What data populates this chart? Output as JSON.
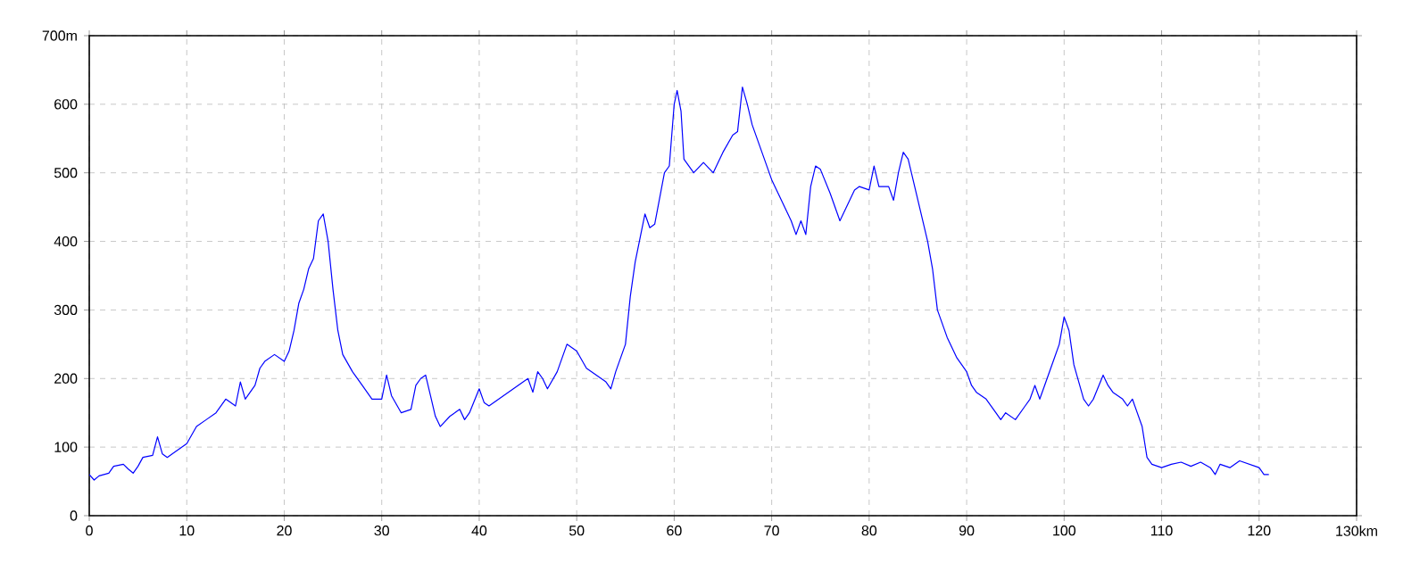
{
  "chart_data": {
    "type": "line",
    "x": [
      0,
      0.5,
      1,
      2,
      2.5,
      3.5,
      4,
      4.5,
      5,
      5.5,
      6.5,
      7,
      7.5,
      8,
      9,
      10,
      11,
      12,
      13,
      14,
      15,
      15.5,
      16,
      17,
      17.5,
      18,
      19,
      20,
      20.5,
      21,
      21.5,
      22,
      22.5,
      23,
      23.5,
      24,
      24.5,
      25,
      25.5,
      26,
      27,
      28,
      28.5,
      29,
      30,
      30.5,
      31,
      32,
      33,
      33.5,
      34,
      34.5,
      35,
      35.5,
      36,
      37,
      38,
      38.5,
      39,
      40,
      40.5,
      41,
      42,
      43,
      44,
      45,
      45.5,
      46,
      46.5,
      47,
      48,
      49,
      50,
      51,
      52,
      53,
      53.5,
      54,
      55,
      55.5,
      56,
      57,
      57.5,
      58,
      59,
      59.5,
      60,
      60.3,
      60.7,
      61,
      62,
      63,
      64,
      65,
      66,
      66.5,
      67,
      67.5,
      68,
      69,
      70,
      71,
      72,
      72.5,
      73,
      73.5,
      74,
      74.5,
      75,
      76,
      77,
      78,
      78.5,
      79,
      80,
      80.5,
      81,
      82,
      82.5,
      83,
      83.5,
      84,
      85,
      86,
      86.5,
      87,
      88,
      89,
      89.5,
      90,
      90.5,
      91,
      92,
      93,
      93.5,
      94,
      95,
      96,
      96.5,
      97,
      97.5,
      98,
      99,
      99.5,
      100,
      100.5,
      101,
      102,
      102.5,
      103,
      104,
      104.5,
      105,
      106,
      106.5,
      107,
      108,
      108.5,
      109,
      110,
      111,
      112,
      113,
      114,
      115,
      115.5,
      116,
      117,
      118,
      119,
      120,
      120.5,
      121
    ],
    "series": [
      {
        "color": "#0000ff",
        "values": [
          60,
          52,
          58,
          62,
          72,
          75,
          68,
          62,
          72,
          85,
          88,
          115,
          90,
          85,
          95,
          105,
          130,
          140,
          150,
          170,
          160,
          195,
          170,
          190,
          215,
          225,
          235,
          225,
          240,
          270,
          310,
          330,
          360,
          375,
          430,
          440,
          400,
          330,
          270,
          235,
          210,
          190,
          180,
          170,
          170,
          205,
          175,
          150,
          155,
          190,
          200,
          205,
          175,
          145,
          130,
          145,
          155,
          140,
          150,
          185,
          165,
          160,
          170,
          180,
          190,
          200,
          180,
          210,
          200,
          185,
          210,
          250,
          240,
          215,
          205,
          195,
          185,
          210,
          250,
          320,
          370,
          440,
          420,
          425,
          500,
          510,
          600,
          620,
          590,
          520,
          500,
          515,
          500,
          530,
          555,
          560,
          625,
          600,
          570,
          530,
          490,
          460,
          430,
          410,
          430,
          410,
          480,
          510,
          505,
          470,
          430,
          460,
          475,
          480,
          475,
          510,
          480,
          480,
          460,
          500,
          530,
          520,
          460,
          400,
          360,
          300,
          260,
          230,
          220,
          210,
          190,
          180,
          170,
          150,
          140,
          150,
          140,
          160,
          170,
          190,
          170,
          190,
          230,
          250,
          290,
          270,
          220,
          170,
          160,
          170,
          205,
          190,
          180,
          170,
          160,
          170,
          130,
          85,
          75,
          70,
          75,
          78,
          72,
          78,
          70,
          60,
          75,
          70,
          80,
          75,
          70,
          60,
          60
        ]
      }
    ],
    "xlim": [
      0,
      130
    ],
    "ylim": [
      0,
      700
    ],
    "xticks": [
      0,
      10,
      20,
      30,
      40,
      50,
      60,
      70,
      80,
      90,
      100,
      110,
      120,
      {
        "value": 130,
        "label": "130km"
      }
    ],
    "yticks": [
      0,
      100,
      200,
      300,
      400,
      500,
      600,
      {
        "value": 700,
        "label": "700m"
      }
    ],
    "grid": true,
    "line_style": "solid",
    "marker": "none"
  }
}
